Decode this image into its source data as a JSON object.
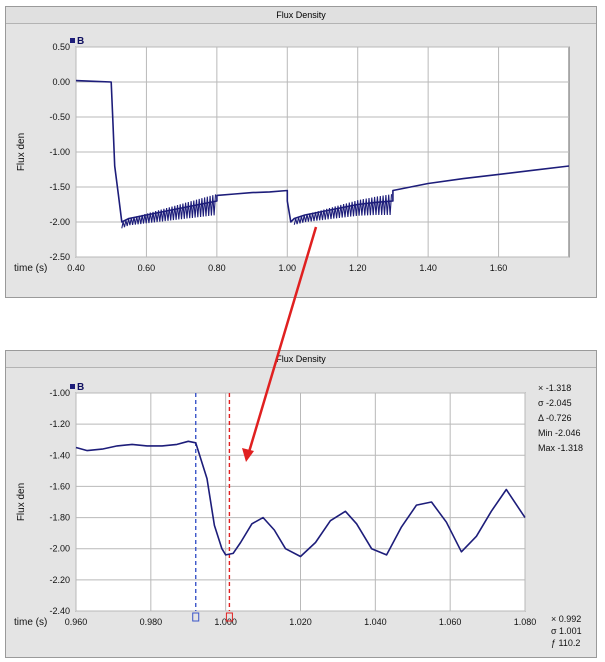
{
  "top_panel": {
    "title": "Flux Density"
  },
  "bottom_panel": {
    "title": "Flux Density",
    "stats": [
      "× -1.318",
      "σ -2.045",
      "Δ -0.726",
      "Min -2.046",
      "Max -1.318"
    ],
    "cursor_readout": [
      "× 0.992",
      "σ 1.001",
      "ƒ 110.2"
    ]
  },
  "colors": {
    "trace": "#1d1d7a",
    "arrow": "#e02020",
    "cursor_blue": "#3a55c8",
    "cursor_red": "#e02020",
    "plot_bg": "#ffffff",
    "grid": "#b9b9b9"
  },
  "chart_data": [
    {
      "type": "line",
      "title": "Flux Density",
      "xlabel": "time (s)",
      "ylabel": "Flux den",
      "xlim": [
        0.4,
        1.8
      ],
      "ylim": [
        -2.5,
        0.5
      ],
      "x_ticks": [
        "0.40",
        "0.60",
        "0.80",
        "1.00",
        "1.20",
        "1.40",
        "1.60"
      ],
      "y_ticks": [
        "0.50",
        "0.00",
        "-0.50",
        "-1.00",
        "-1.50",
        "-2.00",
        "-2.50"
      ],
      "legend": "B",
      "grid": true,
      "series": [
        {
          "name": "B",
          "x": [
            0.4,
            0.45,
            0.5,
            0.505,
            0.51,
            0.52,
            0.53,
            0.55,
            0.6,
            0.65,
            0.7,
            0.75,
            0.8,
            0.8,
            0.85,
            0.9,
            0.95,
            1.0,
            1.0,
            1.01,
            1.02,
            1.05,
            1.1,
            1.15,
            1.2,
            1.25,
            1.3,
            1.3,
            1.35,
            1.4,
            1.5,
            1.6,
            1.7,
            1.8
          ],
          "y": [
            0.02,
            0.01,
            0.0,
            -0.6,
            -1.2,
            -1.6,
            -2.0,
            -1.95,
            -1.9,
            -1.85,
            -1.8,
            -1.75,
            -1.7,
            -1.62,
            -1.6,
            -1.58,
            -1.57,
            -1.55,
            -1.7,
            -2.0,
            -1.95,
            -1.9,
            -1.85,
            -1.8,
            -1.75,
            -1.72,
            -1.7,
            -1.55,
            -1.5,
            -1.45,
            -1.38,
            -1.32,
            -1.26,
            -1.2
          ]
        }
      ],
      "oscillation_bands": [
        [
          0.53,
          0.8
        ],
        [
          1.02,
          1.3
        ]
      ]
    },
    {
      "type": "line",
      "title": "Flux Density",
      "xlabel": "time (s)",
      "ylabel": "Flux den",
      "xlim": [
        0.96,
        1.08
      ],
      "ylim": [
        -2.4,
        -1.0
      ],
      "x_ticks": [
        "0.960",
        "0.980",
        "1.000",
        "1.020",
        "1.040",
        "1.060",
        "1.080"
      ],
      "y_ticks": [
        "-1.00",
        "-1.20",
        "-1.40",
        "-1.60",
        "-1.80",
        "-2.00",
        "-2.20",
        "-2.40"
      ],
      "legend": "B",
      "grid": true,
      "cursors": [
        0.992,
        1.001
      ],
      "series": [
        {
          "name": "B",
          "x": [
            0.96,
            0.963,
            0.967,
            0.971,
            0.975,
            0.979,
            0.983,
            0.987,
            0.99,
            0.992,
            0.995,
            0.997,
            0.999,
            1.0,
            1.002,
            1.004,
            1.007,
            1.01,
            1.013,
            1.016,
            1.02,
            1.024,
            1.028,
            1.032,
            1.035,
            1.039,
            1.043,
            1.047,
            1.051,
            1.055,
            1.059,
            1.063,
            1.067,
            1.071,
            1.075,
            1.08
          ],
          "y": [
            -1.35,
            -1.37,
            -1.36,
            -1.34,
            -1.33,
            -1.34,
            -1.34,
            -1.33,
            -1.31,
            -1.32,
            -1.55,
            -1.85,
            -2.0,
            -2.04,
            -2.03,
            -1.96,
            -1.84,
            -1.8,
            -1.88,
            -2.0,
            -2.05,
            -1.96,
            -1.82,
            -1.76,
            -1.84,
            -2.0,
            -2.04,
            -1.86,
            -1.72,
            -1.7,
            -1.83,
            -2.02,
            -1.92,
            -1.76,
            -1.62,
            -1.8
          ]
        }
      ]
    }
  ]
}
